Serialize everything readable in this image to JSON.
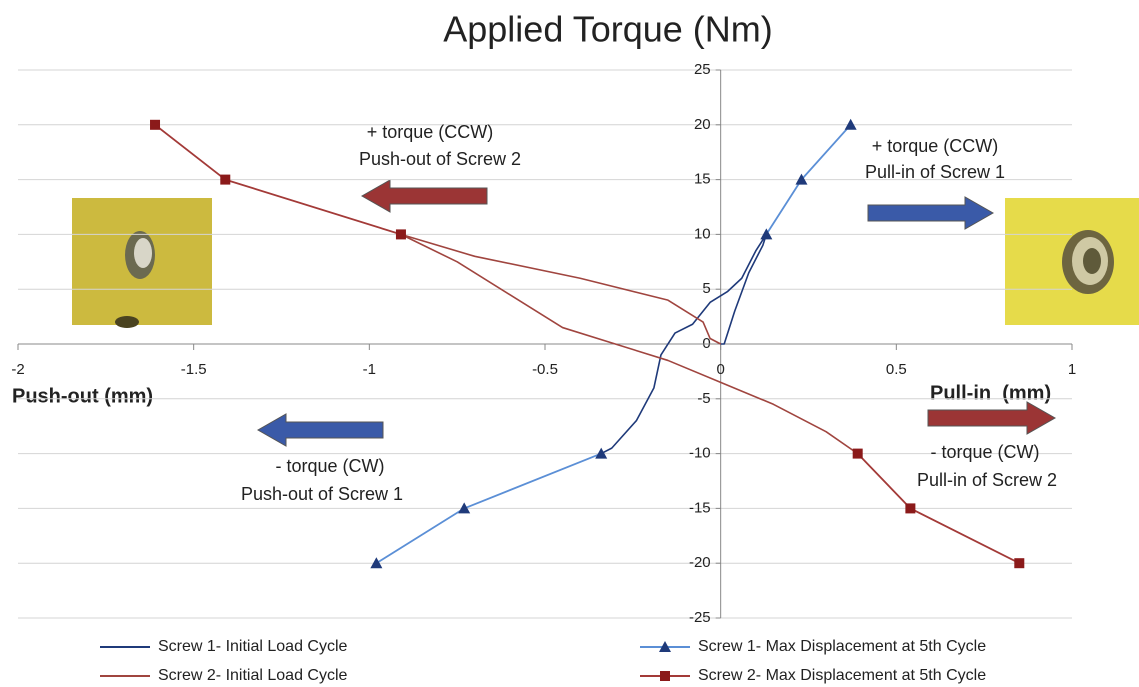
{
  "chart_data": {
    "type": "line",
    "title": "Applied Torque (Nm)",
    "x_label_left": "Push-out (mm)",
    "x_label_right": "Pull-in  (mm)",
    "xlim": [
      -2,
      1
    ],
    "xticks": [
      -2,
      -1.5,
      -1,
      -0.5,
      0,
      0.5,
      1
    ],
    "ylim": [
      -25,
      25
    ],
    "yticks": [
      -25,
      -20,
      -15,
      -10,
      -5,
      0,
      5,
      10,
      15,
      20,
      25
    ],
    "grid": true,
    "annotations": [
      "+ torque (CCW)",
      "Push-out of Screw 2",
      "+ torque (CCW)",
      "Pull-in of Screw 1",
      "- torque (CW)",
      "Push-out of Screw 1",
      "- torque (CW)",
      "Pull-in of Screw 2"
    ],
    "series": [
      {
        "name": "Screw 1- Initial Load Cycle",
        "color": "#1f3a7a",
        "marker": null,
        "x": [
          0,
          0.01,
          0.04,
          0.08,
          0.12,
          0.13,
          0.1,
          0.06,
          0.02,
          -0.03,
          -0.08,
          -0.13,
          -0.17,
          -0.19,
          -0.24,
          -0.31,
          -0.34
        ],
        "values": [
          0,
          0,
          3,
          6.5,
          9,
          10,
          8.5,
          6,
          4.8,
          3.8,
          1.8,
          1,
          -1,
          -4,
          -7,
          -9.5,
          -10
        ]
      },
      {
        "name": "Screw 1- Max Displacement at 5th Cycle",
        "color": "#5b8fd6",
        "marker": "triangle",
        "marker_color": "#1f3a7a",
        "x": [
          -0.98,
          -0.73,
          -0.34,
          null,
          0.13,
          0.23,
          0.37
        ],
        "values": [
          -20,
          -15,
          -10,
          null,
          10,
          15,
          20
        ]
      },
      {
        "name": "Screw 2- Initial Load Cycle",
        "color": "#a0453f",
        "marker": null,
        "x": [
          0.39,
          0.3,
          0.15,
          0,
          -0.15,
          -0.3,
          -0.45,
          -0.6,
          -0.75,
          -0.91,
          -0.7,
          -0.4,
          -0.15,
          -0.05,
          -0.03,
          0
        ],
        "values": [
          -10,
          -8,
          -5.5,
          -3.5,
          -1.5,
          0,
          1.5,
          4.5,
          7.5,
          10,
          8,
          6,
          4,
          2,
          0.5,
          0
        ]
      },
      {
        "name": "Screw 2- Max Displacement at 5th Cycle",
        "color": "#a33a38",
        "marker": "square",
        "marker_color": "#8b1a1a",
        "x": [
          -1.61,
          -1.41,
          -0.91,
          null,
          0.39,
          0.54,
          0.85
        ],
        "values": [
          20,
          15,
          10,
          null,
          -10,
          -15,
          -20
        ]
      }
    ]
  }
}
